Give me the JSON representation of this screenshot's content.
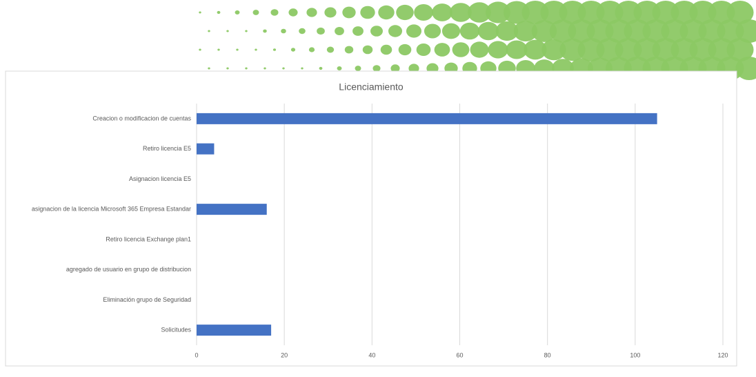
{
  "chart_data": {
    "type": "bar",
    "orientation": "horizontal",
    "title": "Licenciamiento",
    "categories": [
      "Creacion o modificacion de cuentas",
      "Retiro licencia E5",
      "Asignacion licencia E5",
      "asignacion de la licencia Microsoft 365 Empresa Estandar",
      "Retiro licencia Exchange plan1",
      "agregado de usuario en grupo de distribucion",
      "Eliminación grupo de Seguridad",
      "Solicitudes"
    ],
    "values": [
      105,
      4,
      0,
      16,
      0,
      0,
      0,
      17
    ],
    "color": "#4472c4",
    "xlim": [
      0,
      120
    ],
    "xticks": [
      0,
      20,
      40,
      60,
      80,
      100,
      120
    ],
    "grid": true
  }
}
